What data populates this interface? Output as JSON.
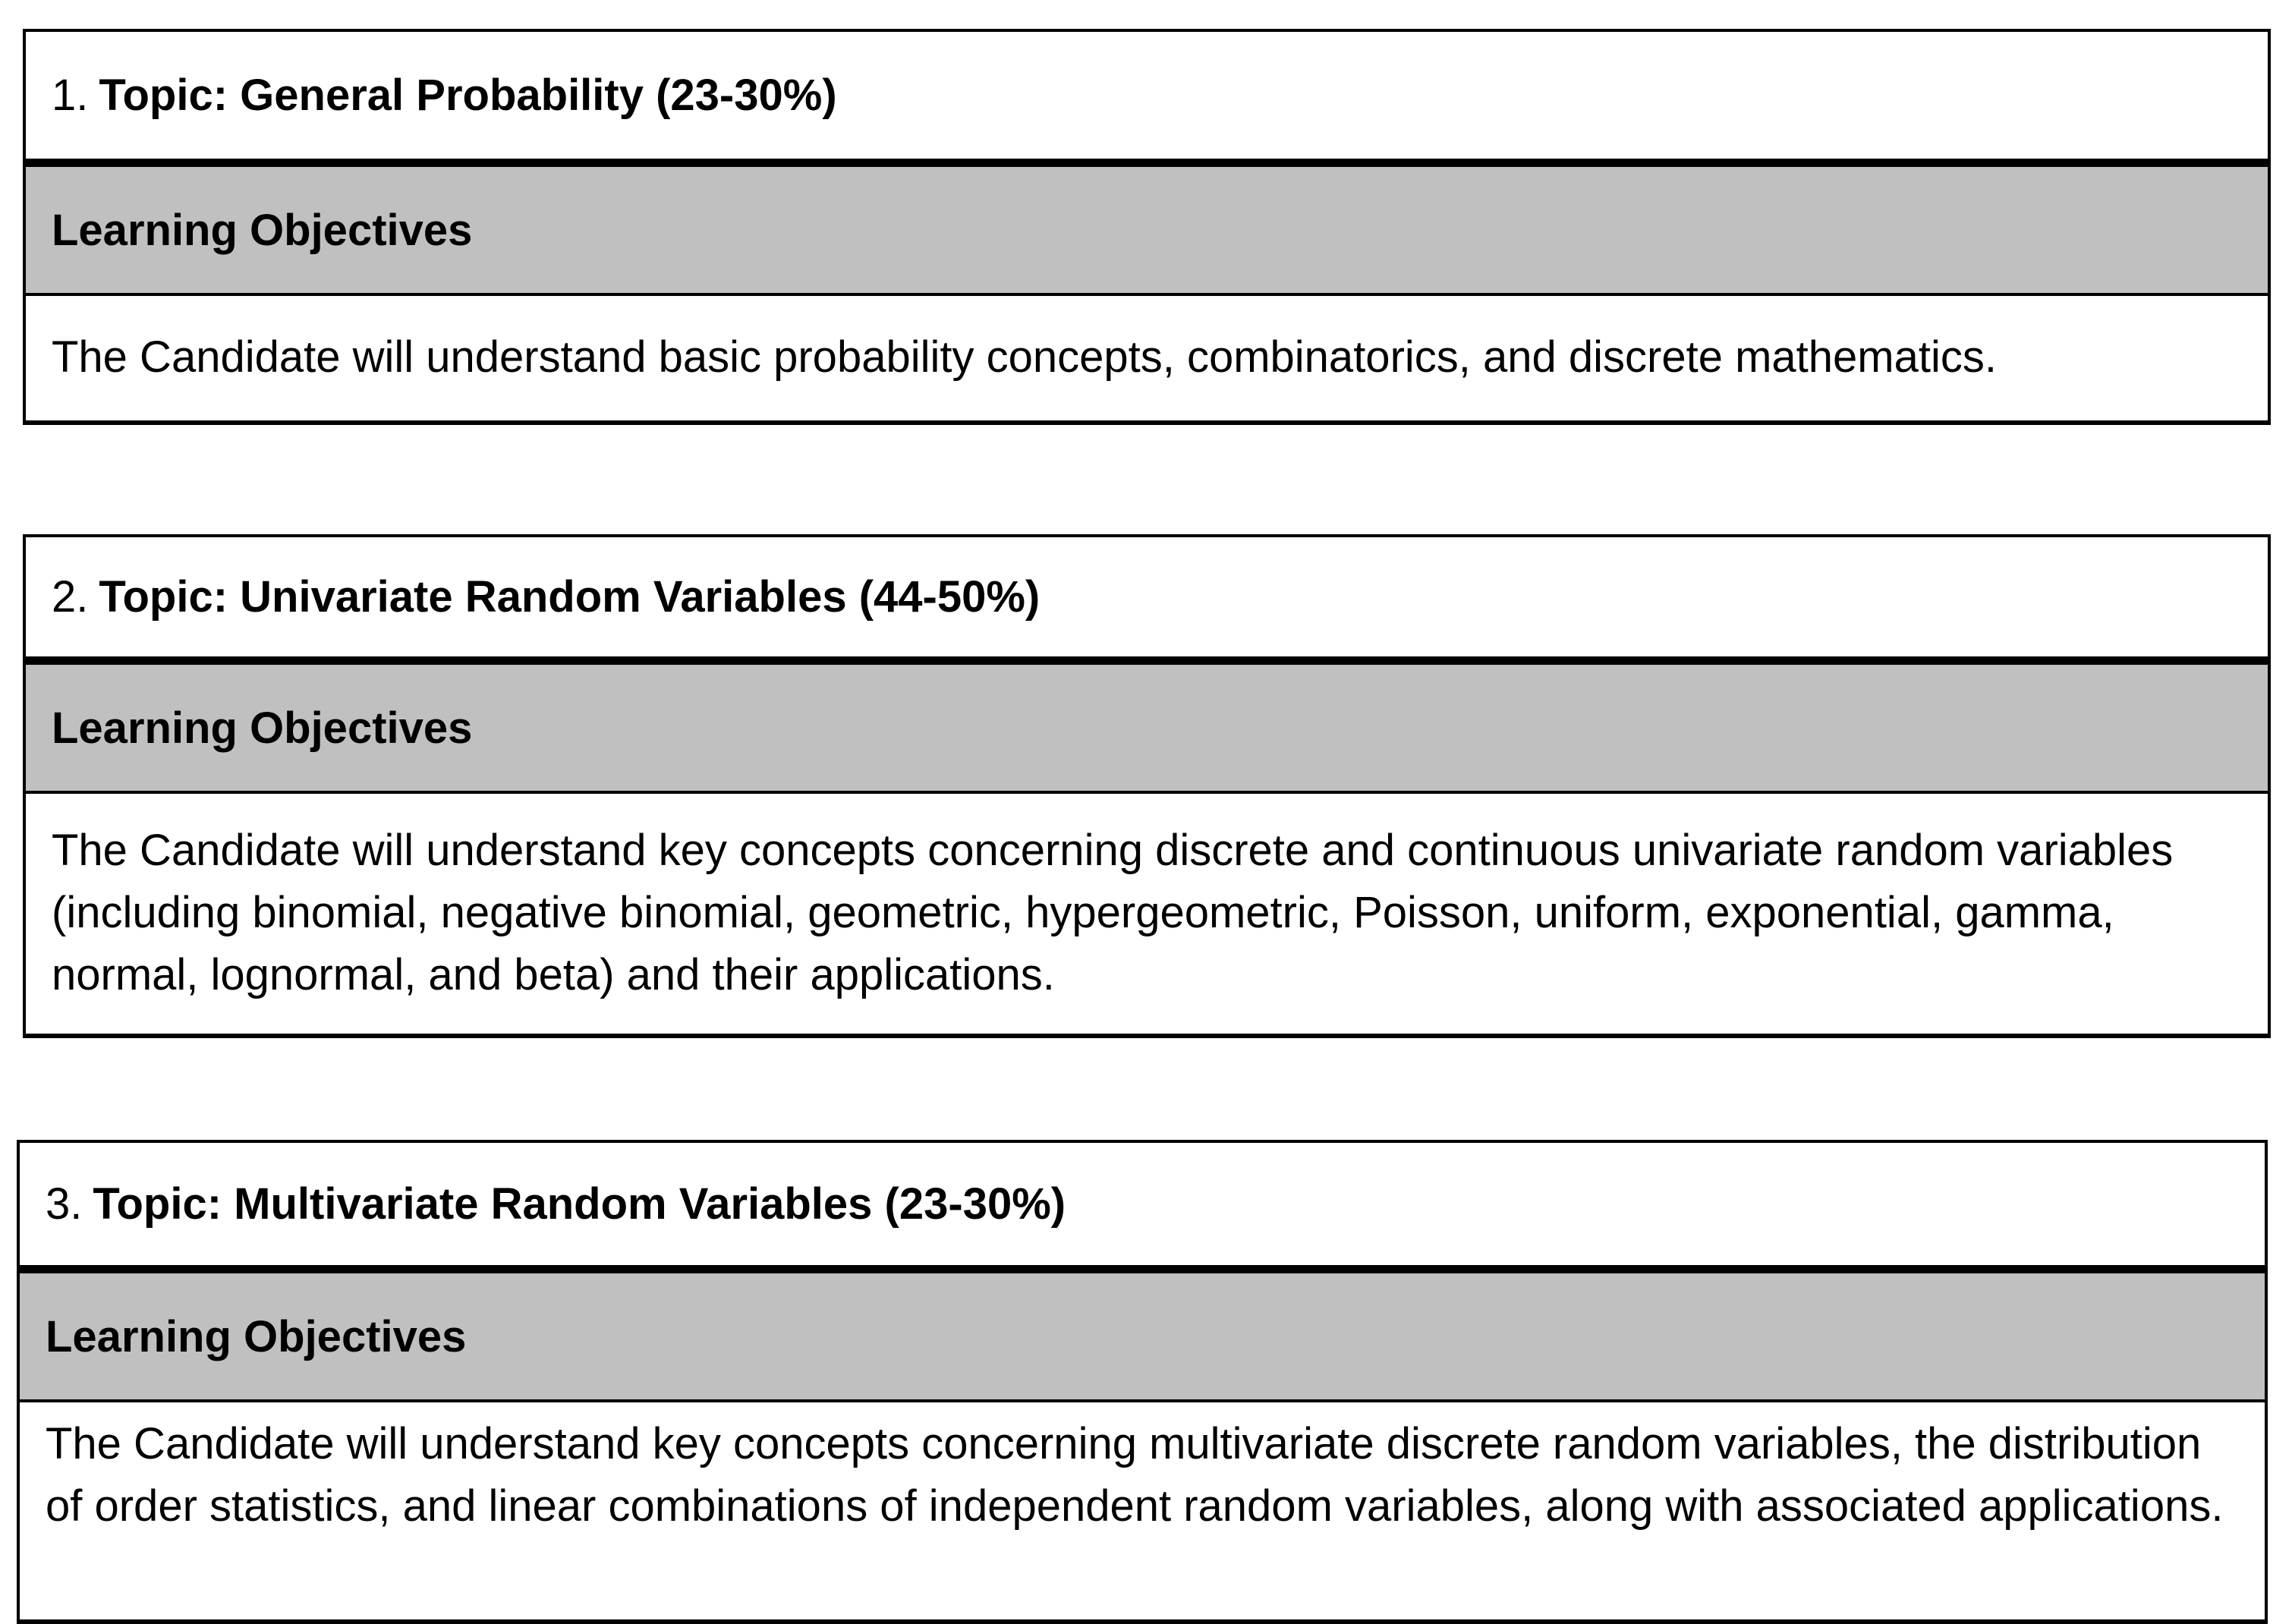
{
  "topics": [
    {
      "number": "1.",
      "title": "Topic: General Probability (23-30%)",
      "objectives_label": "Learning Objectives",
      "description": "The Candidate will understand basic probability concepts, combinatorics, and discrete mathematics."
    },
    {
      "number": "2.",
      "title": "Topic: Univariate Random Variables (44-50%)",
      "objectives_label": "Learning Objectives",
      "description": "The Candidate will understand key concepts concerning discrete and continuous univariate random variables (including binomial, negative binomial, geometric, hypergeometric, Poisson, uniform, exponential, gamma, normal, lognormal, and beta) and their applications."
    },
    {
      "number": "3.",
      "title": "Topic: Multivariate Random Variables (23-30%)",
      "objectives_label": "Learning Objectives",
      "description": "The Candidate will understand key concepts concerning multivariate discrete random variables, the distribution of order statistics, and linear combinations of independent random variables, along with associated applications."
    }
  ],
  "colors": {
    "header_band": "#c0c0c0",
    "border": "#000000"
  }
}
